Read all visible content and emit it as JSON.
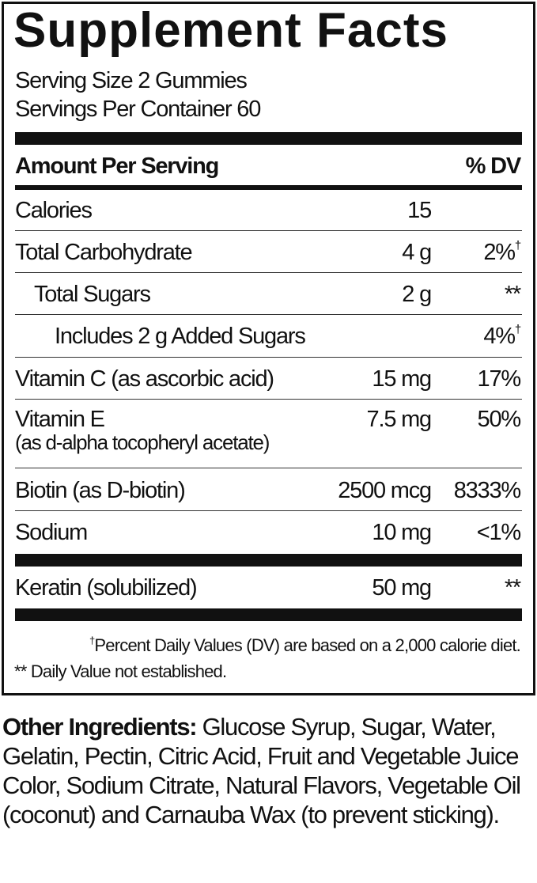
{
  "title": "Supplement Facts",
  "serving_size": "Serving Size 2 Gummies",
  "servings_per_container": "Servings Per Container 60",
  "header": {
    "amount": "Amount Per Serving",
    "dv": "% DV"
  },
  "rows": [
    {
      "name": "Calories",
      "amount": "15",
      "dv": ""
    },
    {
      "name": "Total Carbohydrate",
      "amount": "4 g",
      "dv": "2%",
      "dv_mark": "†"
    },
    {
      "name": "Total Sugars",
      "amount": "2 g",
      "dv": "**"
    },
    {
      "name": "Includes 2 g Added Sugars",
      "amount": "",
      "dv": "4%",
      "dv_mark": "†"
    },
    {
      "name": "Vitamin C",
      "detail": "(as ascorbic acid)",
      "amount": "15 mg",
      "dv": "17%"
    },
    {
      "name": "Vitamin E",
      "detail": "(as d-alpha tocopheryl acetate)",
      "amount": "7.5 mg",
      "dv": "50%"
    },
    {
      "name": "Biotin",
      "detail": "(as D-biotin)",
      "amount": "2500 mcg",
      "dv": "8333%"
    },
    {
      "name": "Sodium",
      "amount": "10 mg",
      "dv": "<1%"
    },
    {
      "name": "Keratin",
      "detail": "(solubilized)",
      "amount": "50 mg",
      "dv": "**"
    }
  ],
  "footnotes": {
    "dagger_mark": "†",
    "dagger": "Percent Daily Values (DV) are based on a 2,000 calorie diet.",
    "stars_mark": "**",
    "stars": "Daily Value not established."
  },
  "other_ingredients": {
    "label": "Other Ingredients:",
    "text": " Glucose Syrup, Sugar, Water, Gelatin, Pectin, Citric Acid, Fruit and Vegetable Juice Color, Sodium Citrate, Natural Flavors, Vegetable Oil (coconut) and Carnauba Wax (to prevent sticking)."
  }
}
